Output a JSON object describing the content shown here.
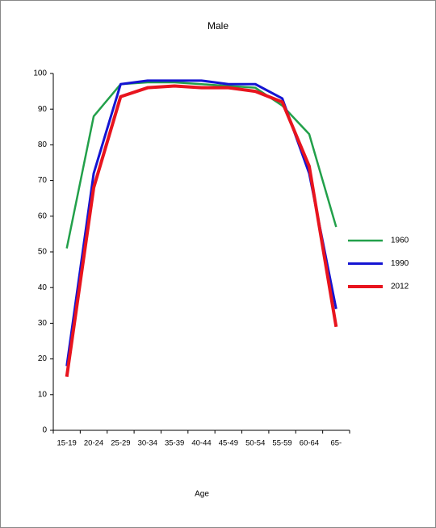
{
  "chart_data": {
    "type": "line",
    "title": "Male",
    "x_label": "Age",
    "categories": [
      "15-19",
      "20-24",
      "25-29",
      "30-34",
      "35-39",
      "40-44",
      "45-49",
      "50-54",
      "55-59",
      "60-64",
      "65-"
    ],
    "series": [
      {
        "name": "1960",
        "color": "#22a04a",
        "values": [
          51,
          88,
          97,
          97.5,
          97.5,
          97,
          96.5,
          96,
          91,
          83,
          57
        ]
      },
      {
        "name": "1990",
        "color": "#1414d2",
        "values": [
          18,
          72,
          97,
          98,
          98,
          98,
          97,
          97,
          93,
          72,
          34
        ]
      },
      {
        "name": "2012",
        "color": "#e8141e",
        "values": [
          15,
          68,
          93.5,
          96,
          96.5,
          96,
          96,
          95,
          92,
          74,
          29
        ]
      }
    ],
    "ylim": [
      0,
      100
    ],
    "yticks": [
      0,
      10,
      20,
      30,
      40,
      50,
      60,
      70,
      80,
      90,
      100
    ],
    "grid": false,
    "legend": "right"
  }
}
